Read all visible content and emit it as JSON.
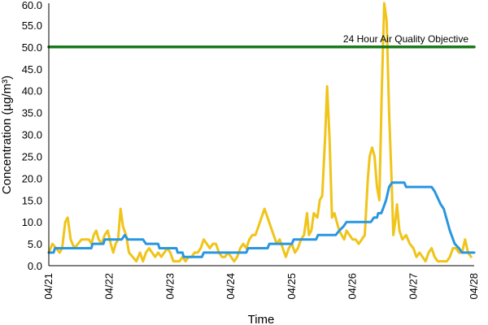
{
  "chart_data": {
    "type": "line",
    "xlabel": "Time",
    "ylabel": "Concentration (µg/m³)",
    "ylim": [
      0,
      60
    ],
    "yticks": [
      "0.0",
      "5.0",
      "10.0",
      "15.0",
      "20.0",
      "25.0",
      "30.0",
      "35.0",
      "40.0",
      "45.0",
      "50.0",
      "55.0",
      "60.0"
    ],
    "xlim": [
      0,
      7
    ],
    "xticks": [
      "04/21",
      "04/22",
      "04/23",
      "04/24",
      "04/25",
      "04/26",
      "04/27",
      "04/28"
    ],
    "grid": false,
    "annotation": {
      "text": "24 Hour Air Quality Objective",
      "value": 50
    },
    "series": [
      {
        "color": "#f0c419",
        "points": [
          [
            0,
            3
          ],
          [
            0.06,
            5
          ],
          [
            0.12,
            4
          ],
          [
            0.18,
            3
          ],
          [
            0.22,
            4
          ],
          [
            0.27,
            10
          ],
          [
            0.31,
            11
          ],
          [
            0.36,
            6
          ],
          [
            0.42,
            4
          ],
          [
            0.48,
            5
          ],
          [
            0.54,
            6
          ],
          [
            0.6,
            6
          ],
          [
            0.66,
            6
          ],
          [
            0.7,
            5
          ],
          [
            0.74,
            7
          ],
          [
            0.78,
            8
          ],
          [
            0.82,
            6
          ],
          [
            0.87,
            5
          ],
          [
            0.92,
            7
          ],
          [
            0.97,
            8
          ],
          [
            1.02,
            5
          ],
          [
            1.06,
            3
          ],
          [
            1.1,
            5
          ],
          [
            1.14,
            6
          ],
          [
            1.18,
            13
          ],
          [
            1.22,
            9
          ],
          [
            1.27,
            7
          ],
          [
            1.32,
            3
          ],
          [
            1.38,
            2
          ],
          [
            1.44,
            1
          ],
          [
            1.5,
            3
          ],
          [
            1.55,
            1
          ],
          [
            1.6,
            3
          ],
          [
            1.65,
            4
          ],
          [
            1.7,
            3
          ],
          [
            1.75,
            2
          ],
          [
            1.8,
            3
          ],
          [
            1.85,
            2
          ],
          [
            1.9,
            3
          ],
          [
            1.95,
            4
          ],
          [
            2.0,
            3
          ],
          [
            2.05,
            1
          ],
          [
            2.1,
            1
          ],
          [
            2.15,
            1
          ],
          [
            2.2,
            2
          ],
          [
            2.25,
            1
          ],
          [
            2.3,
            2
          ],
          [
            2.35,
            2
          ],
          [
            2.4,
            3
          ],
          [
            2.45,
            3
          ],
          [
            2.5,
            4
          ],
          [
            2.55,
            6
          ],
          [
            2.6,
            5
          ],
          [
            2.65,
            4
          ],
          [
            2.7,
            5
          ],
          [
            2.75,
            5
          ],
          [
            2.8,
            3
          ],
          [
            2.85,
            2
          ],
          [
            2.9,
            2
          ],
          [
            2.95,
            3
          ],
          [
            3.0,
            2
          ],
          [
            3.05,
            1
          ],
          [
            3.1,
            2
          ],
          [
            3.15,
            4
          ],
          [
            3.2,
            5
          ],
          [
            3.25,
            4
          ],
          [
            3.3,
            6
          ],
          [
            3.35,
            7
          ],
          [
            3.4,
            7
          ],
          [
            3.45,
            9
          ],
          [
            3.5,
            11
          ],
          [
            3.55,
            13
          ],
          [
            3.6,
            11
          ],
          [
            3.65,
            9
          ],
          [
            3.7,
            7
          ],
          [
            3.75,
            5
          ],
          [
            3.8,
            6
          ],
          [
            3.85,
            4
          ],
          [
            3.9,
            2
          ],
          [
            3.95,
            4
          ],
          [
            4.0,
            5
          ],
          [
            4.05,
            3
          ],
          [
            4.1,
            4
          ],
          [
            4.15,
            6
          ],
          [
            4.2,
            7
          ],
          [
            4.25,
            12
          ],
          [
            4.28,
            7
          ],
          [
            4.32,
            8
          ],
          [
            4.36,
            12
          ],
          [
            4.42,
            11
          ],
          [
            4.46,
            15
          ],
          [
            4.5,
            16
          ],
          [
            4.55,
            30
          ],
          [
            4.58,
            41
          ],
          [
            4.62,
            29
          ],
          [
            4.66,
            11
          ],
          [
            4.7,
            12
          ],
          [
            4.74,
            10
          ],
          [
            4.78,
            8
          ],
          [
            4.82,
            7
          ],
          [
            4.86,
            6
          ],
          [
            4.9,
            8
          ],
          [
            4.95,
            7
          ],
          [
            5.0,
            6
          ],
          [
            5.05,
            6
          ],
          [
            5.1,
            5
          ],
          [
            5.15,
            6
          ],
          [
            5.2,
            7
          ],
          [
            5.25,
            20
          ],
          [
            5.28,
            25
          ],
          [
            5.32,
            27
          ],
          [
            5.36,
            25
          ],
          [
            5.4,
            18
          ],
          [
            5.44,
            15
          ],
          [
            5.48,
            40
          ],
          [
            5.52,
            62
          ],
          [
            5.56,
            56
          ],
          [
            5.6,
            35
          ],
          [
            5.64,
            20
          ],
          [
            5.67,
            7
          ],
          [
            5.7,
            10
          ],
          [
            5.73,
            14
          ],
          [
            5.77,
            8
          ],
          [
            5.82,
            6
          ],
          [
            5.88,
            7
          ],
          [
            5.94,
            5
          ],
          [
            6.0,
            4
          ],
          [
            6.05,
            2
          ],
          [
            6.1,
            3
          ],
          [
            6.15,
            2
          ],
          [
            6.2,
            1
          ],
          [
            6.25,
            3
          ],
          [
            6.3,
            4
          ],
          [
            6.35,
            2
          ],
          [
            6.4,
            1
          ],
          [
            6.45,
            1
          ],
          [
            6.5,
            1
          ],
          [
            6.55,
            1
          ],
          [
            6.6,
            2
          ],
          [
            6.65,
            4
          ],
          [
            6.7,
            4
          ],
          [
            6.75,
            3
          ],
          [
            6.8,
            3
          ],
          [
            6.85,
            6
          ],
          [
            6.9,
            3
          ],
          [
            6.95,
            2
          ]
        ]
      },
      {
        "color": "#2896e0",
        "points": [
          [
            0,
            3
          ],
          [
            0.08,
            3
          ],
          [
            0.1,
            4
          ],
          [
            0.7,
            4
          ],
          [
            0.72,
            5
          ],
          [
            0.9,
            5
          ],
          [
            0.92,
            6
          ],
          [
            1.2,
            6
          ],
          [
            1.25,
            7
          ],
          [
            1.3,
            6
          ],
          [
            1.55,
            6
          ],
          [
            1.6,
            5
          ],
          [
            1.8,
            5
          ],
          [
            1.82,
            4
          ],
          [
            2.1,
            4
          ],
          [
            2.12,
            3
          ],
          [
            2.2,
            3
          ],
          [
            2.22,
            2
          ],
          [
            2.52,
            2
          ],
          [
            2.55,
            3
          ],
          [
            3.25,
            3
          ],
          [
            3.28,
            4
          ],
          [
            3.6,
            4
          ],
          [
            3.63,
            5
          ],
          [
            4.0,
            5
          ],
          [
            4.03,
            6
          ],
          [
            4.4,
            6
          ],
          [
            4.43,
            7
          ],
          [
            4.72,
            7
          ],
          [
            4.78,
            8
          ],
          [
            4.85,
            9
          ],
          [
            4.9,
            10
          ],
          [
            5.3,
            10
          ],
          [
            5.35,
            11
          ],
          [
            5.4,
            11
          ],
          [
            5.42,
            12
          ],
          [
            5.47,
            12
          ],
          [
            5.5,
            13
          ],
          [
            5.55,
            15
          ],
          [
            5.6,
            18
          ],
          [
            5.65,
            19
          ],
          [
            5.85,
            19
          ],
          [
            5.88,
            18
          ],
          [
            6.3,
            18
          ],
          [
            6.35,
            17
          ],
          [
            6.45,
            14
          ],
          [
            6.5,
            13
          ],
          [
            6.6,
            8
          ],
          [
            6.68,
            5
          ],
          [
            6.75,
            4
          ],
          [
            6.8,
            3
          ],
          [
            7.0,
            3
          ]
        ]
      },
      {
        "color": "#1a7a1a",
        "points": [
          [
            0,
            50
          ],
          [
            7,
            50
          ]
        ]
      }
    ]
  }
}
